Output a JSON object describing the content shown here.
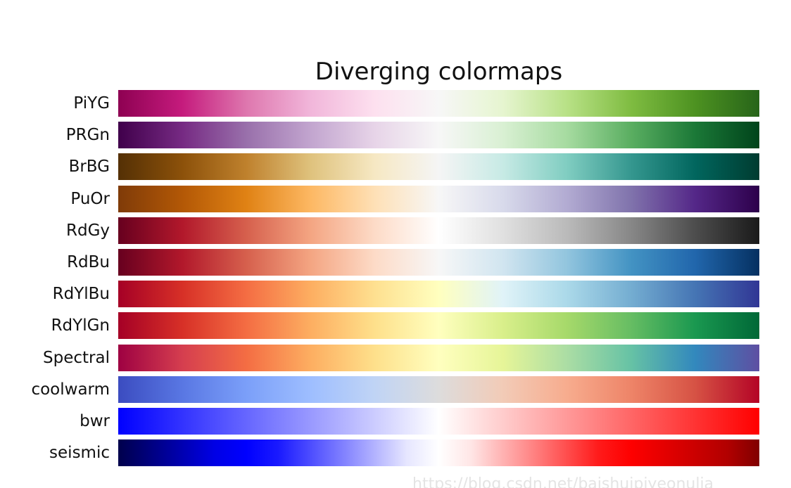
{
  "chart_data": {
    "type": "heatmap",
    "title": "Diverging colormaps",
    "colormaps": [
      {
        "name": "PiYG",
        "colors": [
          "#8e0152",
          "#c51b7d",
          "#de77ae",
          "#f1b6da",
          "#fde0ef",
          "#f7f7f7",
          "#e6f5d0",
          "#b8e186",
          "#7fbc41",
          "#4d9221",
          "#276419"
        ]
      },
      {
        "name": "PRGn",
        "colors": [
          "#40004b",
          "#762a83",
          "#9970ab",
          "#c2a5cf",
          "#e7d4e8",
          "#f7f7f7",
          "#d9f0d3",
          "#a6dba0",
          "#5aae61",
          "#1b7837",
          "#00441b"
        ]
      },
      {
        "name": "BrBG",
        "colors": [
          "#543005",
          "#8c510a",
          "#bf812d",
          "#dfc27d",
          "#f6e8c3",
          "#f5f5f5",
          "#c7eae5",
          "#80cdc1",
          "#35978f",
          "#01665e",
          "#003c30"
        ]
      },
      {
        "name": "PuOr",
        "colors": [
          "#7f3b08",
          "#b35806",
          "#e08214",
          "#fdb863",
          "#fee0b6",
          "#f7f7f7",
          "#d8daeb",
          "#b2abd2",
          "#8073ac",
          "#542788",
          "#2d004b"
        ]
      },
      {
        "name": "RdGy",
        "colors": [
          "#67001f",
          "#b2182b",
          "#d6604d",
          "#f4a582",
          "#fddbc7",
          "#ffffff",
          "#e0e0e0",
          "#bababa",
          "#878787",
          "#4d4d4d",
          "#1a1a1a"
        ]
      },
      {
        "name": "RdBu",
        "colors": [
          "#67001f",
          "#b2182b",
          "#d6604d",
          "#f4a582",
          "#fddbc7",
          "#f7f7f7",
          "#d1e5f0",
          "#92c5de",
          "#4393c3",
          "#2166ac",
          "#053061"
        ]
      },
      {
        "name": "RdYlBu",
        "colors": [
          "#a50026",
          "#d73027",
          "#f46d43",
          "#fdae61",
          "#fee090",
          "#ffffbf",
          "#e0f3f8",
          "#abd9e9",
          "#74add1",
          "#4575b4",
          "#313695"
        ]
      },
      {
        "name": "RdYlGn",
        "colors": [
          "#a50026",
          "#d73027",
          "#f46d43",
          "#fdae61",
          "#fee08b",
          "#ffffbf",
          "#d9ef8b",
          "#a6d96a",
          "#66bd63",
          "#1a9850",
          "#006837"
        ]
      },
      {
        "name": "Spectral",
        "colors": [
          "#9e0142",
          "#d53e4f",
          "#f46d43",
          "#fdae61",
          "#fee08b",
          "#ffffbf",
          "#e6f598",
          "#abdda4",
          "#66c2a5",
          "#3288bd",
          "#5e4fa2"
        ]
      },
      {
        "name": "coolwarm",
        "colors": [
          "#3b4cc0",
          "#5977e3",
          "#7b9ff9",
          "#9ebeff",
          "#c0d4f5",
          "#dddcdc",
          "#f2cbb7",
          "#f7ac8e",
          "#ee8468",
          "#d65244",
          "#b40426"
        ]
      },
      {
        "name": "bwr",
        "colors": [
          "#0000ff",
          "#3333ff",
          "#6666ff",
          "#9999ff",
          "#ccccff",
          "#ffffff",
          "#ffcccc",
          "#ff9999",
          "#ff6666",
          "#ff3333",
          "#ff0000"
        ]
      },
      {
        "name": "seismic",
        "colors": [
          "#00004c",
          "#00007f",
          "#0000b2",
          "#0000e5",
          "#0000ff",
          "#1a1aff",
          "#4d4dff",
          "#8080ff",
          "#b3b3ff",
          "#e6e6ff",
          "#ffffff",
          "#ffe6e6",
          "#ffb2b2",
          "#ff8080",
          "#ff4d4d",
          "#ff1a1a",
          "#fe0000",
          "#e50000",
          "#cb0000",
          "#b20000",
          "#800000"
        ]
      }
    ]
  },
  "watermark": "https://blog.csdn.net/bajshujpiyeonulia"
}
